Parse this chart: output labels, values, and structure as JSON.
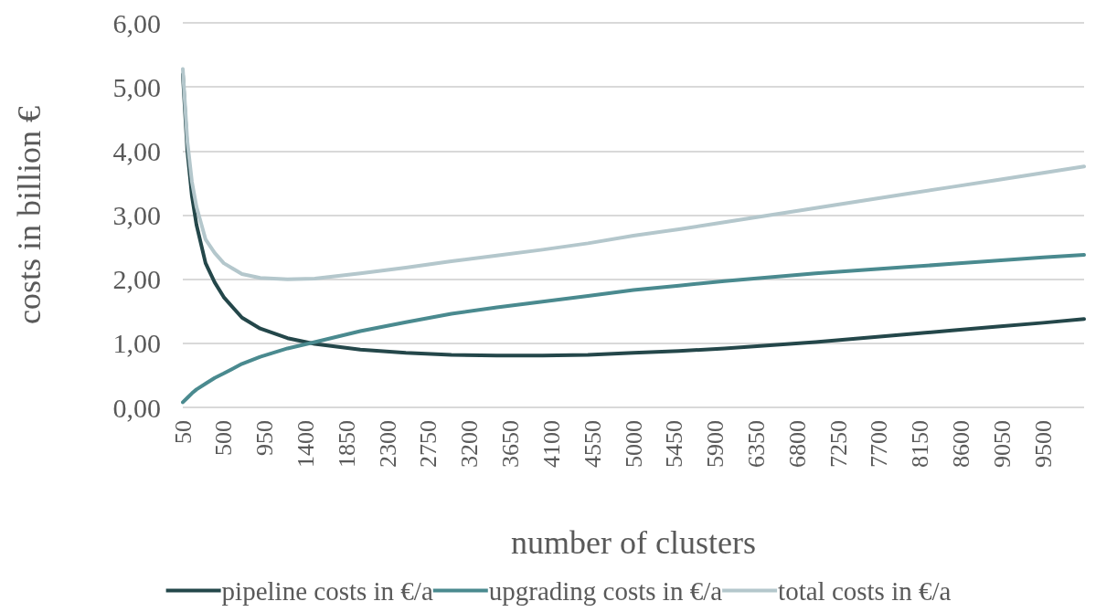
{
  "chart_data": {
    "type": "line",
    "xlabel": "number of clusters",
    "ylabel": "costs in billion €",
    "x": [
      50,
      100,
      150,
      200,
      300,
      400,
      500,
      700,
      900,
      1200,
      1500,
      2000,
      2500,
      3000,
      3500,
      4000,
      4500,
      5000,
      5500,
      6000,
      6500,
      7000,
      7500,
      8000,
      8500,
      9000,
      9500,
      9950
    ],
    "series": [
      {
        "name": "pipeline costs in €/a",
        "color": "#24474a",
        "values": [
          5.2,
          4.0,
          3.3,
          2.85,
          2.25,
          1.95,
          1.72,
          1.4,
          1.23,
          1.08,
          0.99,
          0.9,
          0.85,
          0.82,
          0.81,
          0.81,
          0.82,
          0.85,
          0.88,
          0.92,
          0.97,
          1.02,
          1.08,
          1.14,
          1.2,
          1.26,
          1.32,
          1.38
        ]
      },
      {
        "name": "upgrading costs in €/a",
        "color": "#4a8a8f",
        "values": [
          0.08,
          0.15,
          0.22,
          0.28,
          0.37,
          0.46,
          0.53,
          0.68,
          0.79,
          0.92,
          1.02,
          1.19,
          1.33,
          1.46,
          1.56,
          1.65,
          1.74,
          1.83,
          1.9,
          1.97,
          2.03,
          2.09,
          2.14,
          2.19,
          2.24,
          2.29,
          2.34,
          2.38
        ]
      },
      {
        "name": "total costs in €/a",
        "color": "#b4c7cc",
        "values": [
          5.28,
          4.15,
          3.52,
          3.13,
          2.62,
          2.41,
          2.25,
          2.08,
          2.02,
          2.0,
          2.01,
          2.09,
          2.18,
          2.28,
          2.37,
          2.46,
          2.56,
          2.68,
          2.78,
          2.89,
          3.0,
          3.11,
          3.22,
          3.33,
          3.44,
          3.55,
          3.66,
          3.76
        ]
      }
    ],
    "xlim": [
      50,
      9950
    ],
    "xticks": [
      50,
      500,
      950,
      1400,
      1850,
      2300,
      2750,
      3200,
      3650,
      4100,
      4550,
      5000,
      5450,
      5900,
      6350,
      6800,
      7250,
      7700,
      8150,
      8600,
      9050,
      9500
    ],
    "ylim": [
      0,
      6
    ],
    "yticks": [
      {
        "value": 0,
        "label": "0,00"
      },
      {
        "value": 1,
        "label": "1,00"
      },
      {
        "value": 2,
        "label": "2,00"
      },
      {
        "value": 3,
        "label": "3,00"
      },
      {
        "value": 4,
        "label": "4,00"
      },
      {
        "value": 5,
        "label": "5,00"
      },
      {
        "value": 6,
        "label": "6,00"
      }
    ],
    "grid": "y",
    "legend": "bottom",
    "marker": "none",
    "line_style": "solid"
  }
}
